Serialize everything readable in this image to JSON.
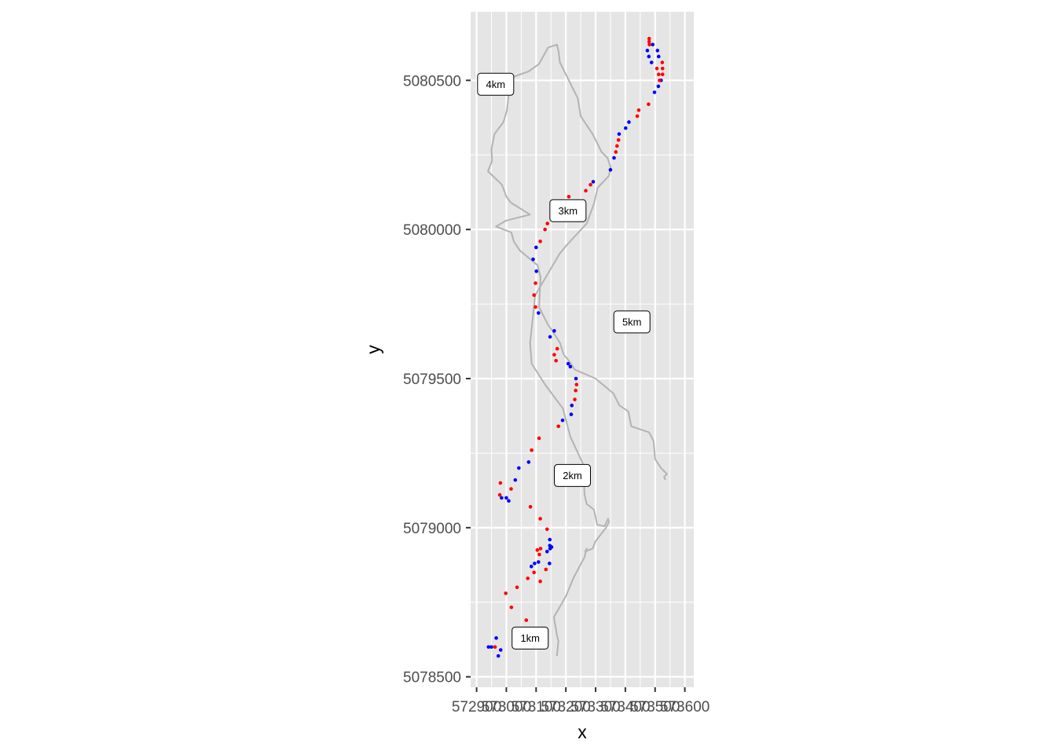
{
  "chart_data": {
    "type": "scatter",
    "title": "",
    "xlabel": "x",
    "ylabel": "y",
    "xlim": [
      572880,
      573630
    ],
    "ylim": [
      5078465,
      5080730
    ],
    "x_ticks": [
      {
        "value": 572900,
        "label": "572900"
      },
      {
        "value": 573000,
        "label": "573000"
      },
      {
        "value": 573100,
        "label": "573100"
      },
      {
        "value": 573200,
        "label": "573200"
      },
      {
        "value": 573300,
        "label": "573300"
      },
      {
        "value": 573400,
        "label": "573400"
      },
      {
        "value": 573500,
        "label": "573500"
      },
      {
        "value": 573600,
        "label": "573600"
      }
    ],
    "y_ticks": [
      {
        "value": 5078500,
        "label": "5078500"
      },
      {
        "value": 5079000,
        "label": "5079000"
      },
      {
        "value": 5079500,
        "label": "5079500"
      },
      {
        "value": 5080000,
        "label": "5080000"
      },
      {
        "value": 5080500,
        "label": "5080500"
      }
    ],
    "grid": true,
    "legend": "none",
    "colors": {
      "panel": "#e5e5e5",
      "grid": "#ffffff",
      "track": "#b3b3b3",
      "red": "#ff0000",
      "blue": "#0000ff"
    },
    "track": {
      "name": "",
      "x": [
        573170,
        573175,
        573170,
        573160,
        573200,
        573225,
        573262,
        573270,
        573265,
        573290,
        573300,
        573335,
        573345,
        573342,
        573330,
        573305,
        573295,
        573270,
        573263,
        573257,
        573215,
        573190,
        573130,
        573085,
        573080,
        573097,
        573180,
        573205,
        573270,
        573294,
        573307,
        573345,
        573350,
        573340,
        573320,
        573290,
        573270,
        573250,
        573240,
        573200,
        573180,
        573175,
        573170,
        573140,
        573110,
        573075,
        573018,
        573010,
        573002,
        572990,
        572960,
        572950,
        572952,
        572938,
        572985,
        573000,
        573015,
        573080,
        573000,
        572965,
        573017,
        573025,
        573045,
        573105,
        573115,
        573110,
        573140,
        573155,
        573180,
        573193,
        573210,
        573230,
        573300,
        573360,
        573380,
        573410,
        573420,
        573480,
        573495,
        573500,
        573520,
        573540,
        573530,
        573535
      ],
      "y": [
        5078570,
        5078620,
        5078640,
        5078700,
        5078770,
        5078830,
        5078900,
        5078930,
        5078920,
        5078930,
        5078955,
        5079000,
        5079020,
        5079030,
        5079005,
        5079010,
        5079060,
        5079080,
        5079110,
        5079215,
        5079305,
        5079400,
        5079480,
        5079550,
        5079620,
        5079780,
        5079920,
        5079950,
        5080020,
        5080085,
        5080140,
        5080180,
        5080210,
        5080240,
        5080260,
        5080320,
        5080350,
        5080380,
        5080440,
        5080520,
        5080560,
        5080600,
        5080620,
        5080610,
        5080555,
        5080530,
        5080510,
        5080470,
        5080400,
        5080360,
        5080320,
        5080270,
        5080230,
        5080195,
        5080150,
        5080110,
        5080090,
        5080050,
        5080030,
        5080010,
        5079990,
        5079960,
        5079930,
        5079880,
        5079840,
        5079740,
        5079680,
        5079660,
        5079620,
        5079580,
        5079560,
        5079530,
        5079500,
        5079450,
        5079410,
        5079390,
        5079340,
        5079320,
        5079290,
        5079230,
        5079200,
        5079180,
        5079170,
        5079160
      ]
    },
    "points": {
      "x": [
        572973,
        572981,
        573030,
        573067,
        573017,
        572962,
        572950,
        572940,
        572966,
        572998,
        573036,
        573072,
        573084,
        573095,
        573108,
        573111,
        573104,
        573115,
        573147,
        573152,
        573145,
        573133,
        573093,
        573114,
        573137,
        573146,
        573146,
        573137,
        573114,
        573081,
        573008,
        573000,
        572984,
        572978,
        572980,
        573016,
        573030,
        573042,
        573075,
        573085,
        573110,
        573175,
        573189,
        573218,
        573220,
        573230,
        573233,
        573236,
        573234,
        573215,
        573208,
        573167,
        573161,
        573171,
        573147,
        573161,
        573108,
        573098,
        573093,
        573098,
        573101,
        573090,
        573100,
        573114,
        573130,
        573138,
        573167,
        573172,
        573201,
        573210,
        573267,
        573283,
        573292,
        573350,
        573362,
        573368,
        573372,
        573377,
        573379,
        573401,
        573412,
        573440,
        573445,
        573478,
        573498,
        573511,
        573520,
        573525,
        573525,
        573524,
        573512,
        573508,
        573492,
        573480,
        573480,
        573481,
        573474,
        573479,
        573488,
        573506,
        573512,
        573515
      ],
      "y": [
        5078570,
        5078590,
        5078650,
        5078690,
        5078733,
        5078600,
        5078600,
        5078600,
        5078630,
        5078780,
        5078800,
        5078830,
        5078870,
        5078880,
        5078885,
        5078910,
        5078925,
        5078930,
        5078930,
        5078935,
        5078880,
        5078860,
        5078850,
        5078820,
        5078920,
        5078940,
        5078960,
        5078995,
        5079030,
        5079070,
        5079090,
        5079100,
        5079100,
        5079110,
        5079150,
        5079130,
        5079160,
        5079200,
        5079220,
        5079260,
        5079300,
        5079340,
        5079360,
        5079380,
        5079410,
        5079430,
        5079460,
        5079480,
        5079500,
        5079540,
        5079550,
        5079560,
        5079580,
        5079600,
        5079640,
        5079660,
        5079720,
        5079740,
        5079780,
        5079820,
        5079860,
        5079900,
        5079940,
        5079960,
        5080000,
        5080020,
        5080040,
        5080060,
        5080080,
        5080110,
        5080130,
        5080150,
        5080160,
        5080200,
        5080240,
        5080260,
        5080280,
        5080300,
        5080320,
        5080340,
        5080360,
        5080380,
        5080400,
        5080420,
        5080460,
        5080480,
        5080500,
        5080520,
        5080540,
        5080560,
        5080580,
        5080600,
        5080620,
        5080630,
        5080640,
        5080620,
        5080600,
        5080580,
        5080560,
        5080540,
        5080520,
        5080500
      ],
      "colors": []
    },
    "annotations": [
      {
        "label": "1km",
        "x": 573080,
        "y": 5078630
      },
      {
        "label": "2km",
        "x": 573222,
        "y": 5079175
      },
      {
        "label": "3km",
        "x": 573207,
        "y": 5080063
      },
      {
        "label": "4km",
        "x": 572964,
        "y": 5080487
      },
      {
        "label": "5km",
        "x": 573422,
        "y": 5079690
      }
    ]
  }
}
